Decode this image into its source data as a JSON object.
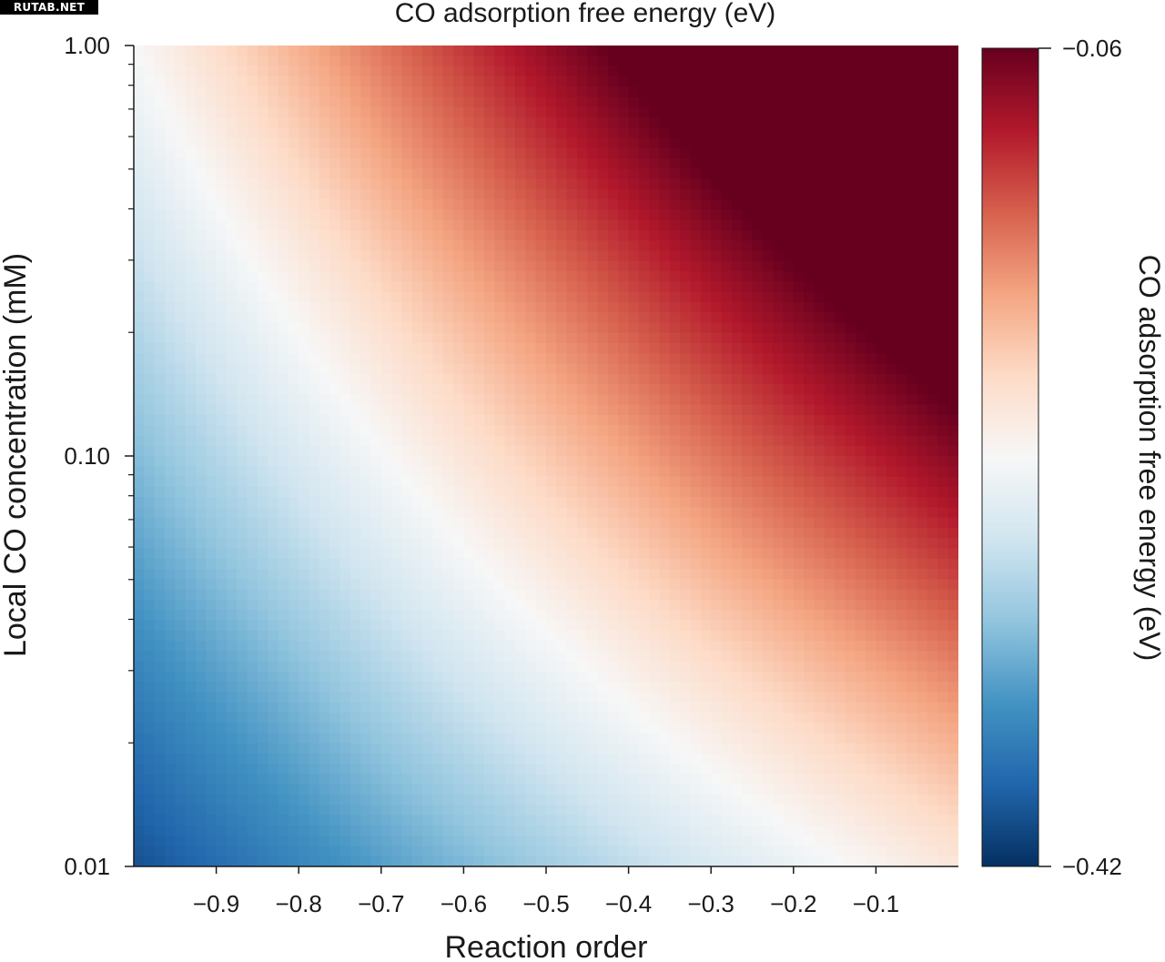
{
  "watermark": "RUTAB.NET",
  "chart_data": {
    "type": "heatmap",
    "title": "CO adsorption free energy (eV)",
    "xlabel": "Reaction order",
    "ylabel": "Local CO concentration (mM)",
    "colorbar_label": "CO adsorption free energy (eV)",
    "x_range": [
      -1.0,
      0.0
    ],
    "y_range": [
      0.01,
      1.0
    ],
    "y_scale": "log",
    "x_ticks": [
      -0.9,
      -0.8,
      -0.7,
      -0.6,
      -0.5,
      -0.4,
      -0.3,
      -0.2,
      -0.1
    ],
    "x_tick_labels": [
      "−0.9",
      "−0.8",
      "−0.7",
      "−0.6",
      "−0.5",
      "−0.4",
      "−0.3",
      "−0.2",
      "−0.1"
    ],
    "y_ticks": [
      0.01,
      0.1,
      1.0
    ],
    "y_tick_labels": [
      "0.01",
      "0.10",
      "1.00"
    ],
    "colorbar_range": [
      -0.42,
      -0.06
    ],
    "colorbar_ticks": [
      -0.06,
      -0.42
    ],
    "colorbar_tick_labels": [
      "−0.06",
      "−0.42"
    ],
    "colormap": "RdBu_r",
    "grid": false,
    "value_model": "energy = -0.06 + 0.36 * x * (1 + 0.5 * (log10(c) - 0)) (approximate, read from the color field)",
    "sample_values": [
      {
        "x": -0.95,
        "c": 0.01,
        "energy": -0.42
      },
      {
        "x": -0.9,
        "c": 1.0,
        "energy": -0.24
      },
      {
        "x": -0.5,
        "c": 0.1,
        "energy": -0.24
      },
      {
        "x": -0.1,
        "c": 0.01,
        "energy": -0.2
      },
      {
        "x": 0.0,
        "c": 1.0,
        "energy": -0.06
      }
    ]
  },
  "colors": {
    "cmap_stops": [
      "#053061",
      "#2166ac",
      "#4393c3",
      "#92c5de",
      "#d1e5f0",
      "#f7f7f7",
      "#fddbc7",
      "#f4a582",
      "#d6604d",
      "#b2182b",
      "#67001f"
    ]
  }
}
